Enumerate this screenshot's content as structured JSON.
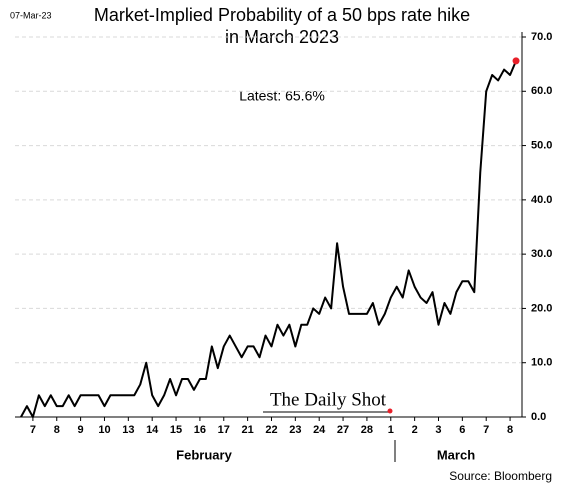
{
  "date_stamp": "07-Mar-23",
  "chart_data": {
    "type": "line",
    "title": [
      "Market-Implied Probability of a 50 bps rate hike",
      "in March 2023"
    ],
    "annotation": "Latest:  65.6%",
    "months": [
      "February",
      "March"
    ],
    "source": "Source: Bloomberg",
    "watermark": "The Daily Shot",
    "color": "#000000",
    "last_point_color": "#e8202a",
    "grid": true,
    "values": [
      0,
      2,
      0,
      4,
      2,
      4,
      2,
      2,
      4,
      2,
      4,
      4,
      4,
      4,
      2,
      4,
      4,
      4,
      4,
      4,
      6,
      10,
      4,
      2,
      4,
      7,
      4,
      7,
      7,
      5,
      7,
      7,
      13,
      9,
      13,
      15,
      13,
      11,
      13,
      13,
      11,
      15,
      13,
      17,
      15,
      17,
      13,
      17,
      17,
      20,
      19,
      22,
      20,
      32,
      24,
      19,
      19,
      19,
      19,
      21,
      17,
      19,
      22,
      24,
      22,
      27,
      24,
      22,
      21,
      23,
      17,
      21,
      19,
      23,
      25,
      25,
      23,
      45,
      60,
      63,
      62,
      64,
      63,
      65.6
    ],
    "xlim": [
      -1,
      84
    ],
    "xticks": [
      {
        "value": 2,
        "label": "7"
      },
      {
        "value": 6,
        "label": "8"
      },
      {
        "value": 10,
        "label": "9"
      },
      {
        "value": 14,
        "label": "10"
      },
      {
        "value": 18,
        "label": "13"
      },
      {
        "value": 22,
        "label": "14"
      },
      {
        "value": 26,
        "label": "15"
      },
      {
        "value": 30,
        "label": "16"
      },
      {
        "value": 34,
        "label": "17"
      },
      {
        "value": 38,
        "label": "21"
      },
      {
        "value": 42,
        "label": "22"
      },
      {
        "value": 46,
        "label": "23"
      },
      {
        "value": 50,
        "label": "24"
      },
      {
        "value": 54,
        "label": "27"
      },
      {
        "value": 58,
        "label": "28"
      },
      {
        "value": 62,
        "label": "1"
      },
      {
        "value": 66,
        "label": "2"
      },
      {
        "value": 70,
        "label": "3"
      },
      {
        "value": 74,
        "label": "6"
      },
      {
        "value": 78,
        "label": "7"
      },
      {
        "value": 82,
        "label": "8"
      }
    ],
    "ylim": [
      0,
      70
    ],
    "yticks": [
      {
        "value": 0,
        "label": "0.0"
      },
      {
        "value": 10,
        "label": "10.0"
      },
      {
        "value": 20,
        "label": "20.0"
      },
      {
        "value": 30,
        "label": "30.0"
      },
      {
        "value": 40,
        "label": "40.0"
      },
      {
        "value": 50,
        "label": "50.0"
      },
      {
        "value": 60,
        "label": "60.0"
      },
      {
        "value": 70,
        "label": "70.0"
      }
    ]
  }
}
